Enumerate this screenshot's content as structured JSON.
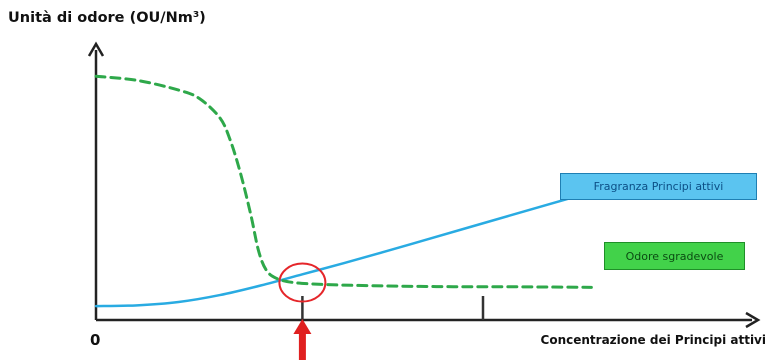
{
  "chart_data": {
    "type": "line",
    "ylabel": "Unità di odore (OU/Nm³)",
    "xlabel": "Concentrazione dei Principi attivi",
    "x_tick_labels": [
      "0"
    ],
    "xlim": [
      0,
      100
    ],
    "ylim": [
      0,
      100
    ],
    "grid": false,
    "series": [
      {
        "name": "Fragranza Principi attivi",
        "style": "solid",
        "color": "#29abe2",
        "x": [
          0,
          8,
          16,
          24,
          32,
          40,
          48,
          56,
          64,
          72,
          80,
          88,
          96
        ],
        "y": [
          5,
          5.3,
          6.5,
          9,
          12.5,
          16.5,
          20.5,
          24.7,
          29,
          33.3,
          37.6,
          41.9,
          46.2
        ]
      },
      {
        "name": "Odore sgradevole",
        "style": "dashed",
        "color": "#2ea84a",
        "x": [
          0,
          8,
          16,
          20,
          24,
          26,
          28,
          30,
          31.5,
          33,
          35,
          38,
          42,
          48,
          56,
          64,
          72,
          80,
          88,
          96
        ],
        "y": [
          88,
          86.5,
          83,
          80,
          73,
          65,
          53,
          38,
          25,
          18,
          15,
          13.6,
          13,
          12.6,
          12.3,
          12.1,
          12,
          12,
          11.9,
          11.8
        ]
      }
    ],
    "annotations": [
      {
        "type": "circle",
        "x": 40,
        "y": 12.8,
        "color": "#e5262a"
      },
      {
        "type": "arrow",
        "x": 40,
        "color": "#e02020"
      }
    ],
    "legend": [
      {
        "label": "Fragranza Principi attivi",
        "bg": "#5bc4f0",
        "border": "#1f7fb3",
        "text_color": "#0c4f86"
      },
      {
        "label": "Odore sgradevole",
        "bg": "#42d24a",
        "border": "#1f8f28",
        "text_color": "#0b4c12"
      }
    ],
    "x_ticks": [
      40,
      75
    ],
    "legend_placement": "right"
  }
}
